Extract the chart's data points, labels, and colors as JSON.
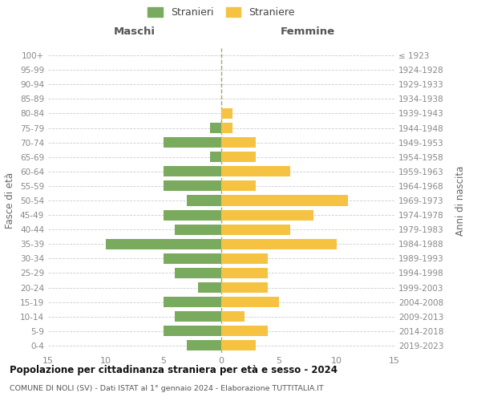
{
  "age_groups": [
    "0-4",
    "5-9",
    "10-14",
    "15-19",
    "20-24",
    "25-29",
    "30-34",
    "35-39",
    "40-44",
    "45-49",
    "50-54",
    "55-59",
    "60-64",
    "65-69",
    "70-74",
    "75-79",
    "80-84",
    "85-89",
    "90-94",
    "95-99",
    "100+"
  ],
  "birth_years": [
    "2019-2023",
    "2014-2018",
    "2009-2013",
    "2004-2008",
    "1999-2003",
    "1994-1998",
    "1989-1993",
    "1984-1988",
    "1979-1983",
    "1974-1978",
    "1969-1973",
    "1964-1968",
    "1959-1963",
    "1954-1958",
    "1949-1953",
    "1944-1948",
    "1939-1943",
    "1934-1938",
    "1929-1933",
    "1924-1928",
    "≤ 1923"
  ],
  "males": [
    3,
    5,
    4,
    5,
    2,
    4,
    5,
    10,
    4,
    5,
    3,
    5,
    5,
    1,
    5,
    1,
    0,
    0,
    0,
    0,
    0
  ],
  "females": [
    3,
    4,
    2,
    5,
    4,
    4,
    4,
    10,
    6,
    8,
    11,
    3,
    6,
    3,
    3,
    1,
    1,
    0,
    0,
    0,
    0
  ],
  "male_color": "#7aaa5e",
  "female_color": "#f5c242",
  "title": "Popolazione per cittadinanza straniera per età e sesso - 2024",
  "subtitle": "COMUNE DI NOLI (SV) - Dati ISTAT al 1° gennaio 2024 - Elaborazione TUTTITALIA.IT",
  "ylabel_left": "Fasce di età",
  "ylabel_right": "Anni di nascita",
  "xlabel_left": "Maschi",
  "xlabel_right": "Femmine",
  "legend_male": "Stranieri",
  "legend_female": "Straniere",
  "xlim": 15,
  "background_color": "#ffffff",
  "grid_color": "#cccccc"
}
